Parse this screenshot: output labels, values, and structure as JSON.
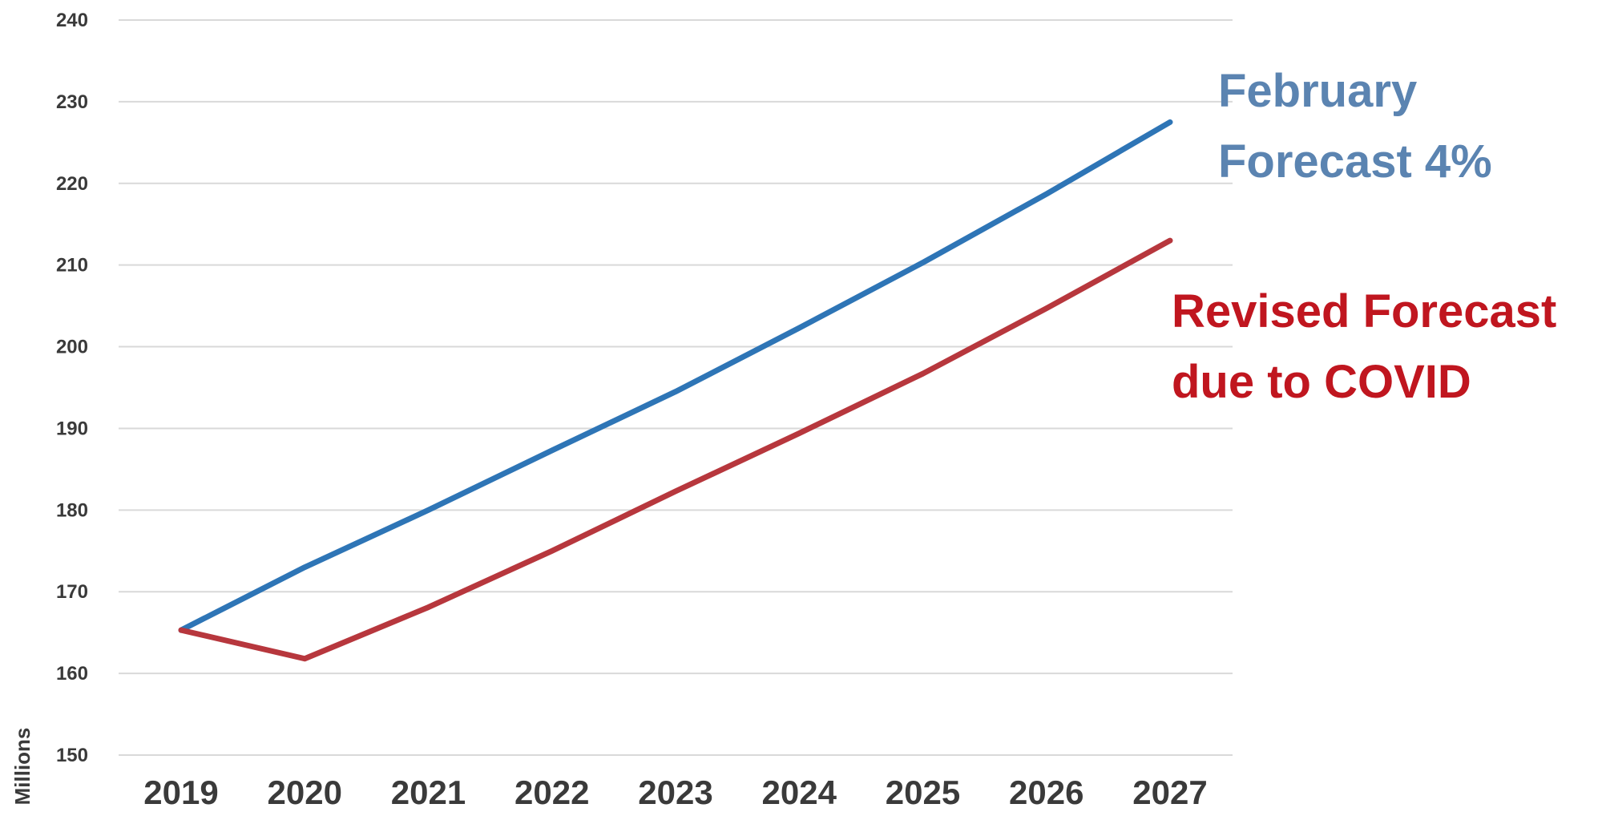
{
  "chart_data": {
    "type": "line",
    "title": "",
    "xlabel": "",
    "ylabel": "Millions",
    "ylim": [
      150,
      240
    ],
    "yticks": [
      150,
      160,
      170,
      180,
      190,
      200,
      210,
      220,
      230,
      240
    ],
    "categories": [
      "2019",
      "2020",
      "2021",
      "2022",
      "2023",
      "2024",
      "2025",
      "2026",
      "2027"
    ],
    "grid": true,
    "legend_placement": "right",
    "series": [
      {
        "name": "February\nForecast 4%",
        "color": "#2e75b6",
        "label_color": "#5b84b1",
        "values": [
          165.3,
          173.0,
          180.0,
          187.3,
          194.5,
          202.3,
          210.3,
          218.7,
          227.5
        ]
      },
      {
        "name": "Revised Forecast\ndue to COVID",
        "color": "#b7373d",
        "label_color": "#c0161f",
        "values": [
          165.3,
          161.8,
          168.1,
          175.0,
          182.3,
          189.4,
          196.7,
          204.7,
          213.0
        ]
      }
    ]
  }
}
